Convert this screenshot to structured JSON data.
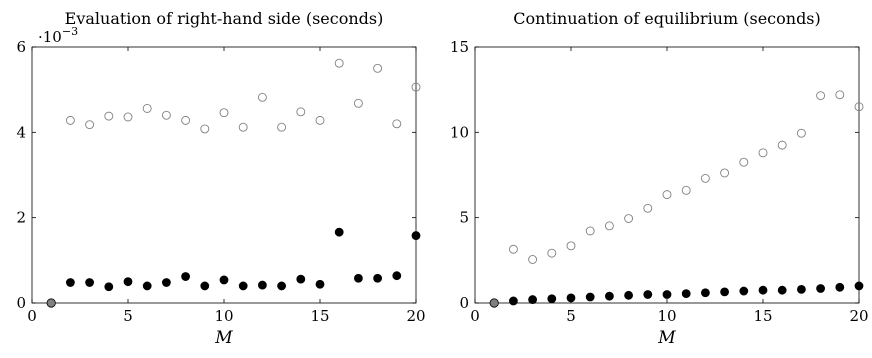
{
  "chart_data": [
    {
      "type": "scatter",
      "title": "Evaluation of right-hand side (seconds)",
      "xlabel": "M",
      "ylabel": "",
      "xlim": [
        0,
        20
      ],
      "ylim": [
        0,
        0.006
      ],
      "xticks": [
        "0",
        "5",
        "10",
        "15",
        "20"
      ],
      "yticks": [
        "0",
        "2",
        "4",
        "6"
      ],
      "y_multiplier": {
        "base": "·10",
        "exponent": "−3"
      },
      "grid": false,
      "series": [
        {
          "marker": "open-circle",
          "color": "#808080",
          "points": [
            [
              2,
              0.00428
            ],
            [
              3,
              0.00418
            ],
            [
              4,
              0.00438
            ],
            [
              5,
              0.00436
            ],
            [
              6,
              0.00456
            ],
            [
              7,
              0.0044
            ],
            [
              8,
              0.00428
            ],
            [
              9,
              0.00408
            ],
            [
              10,
              0.00446
            ],
            [
              11,
              0.00412
            ],
            [
              12,
              0.00482
            ],
            [
              13,
              0.00412
            ],
            [
              14,
              0.00448
            ],
            [
              15,
              0.00428
            ],
            [
              16,
              0.00562
            ],
            [
              17,
              0.00468
            ],
            [
              18,
              0.0055
            ],
            [
              19,
              0.0042
            ],
            [
              20,
              0.00506
            ]
          ]
        },
        {
          "marker": "filled-circle",
          "color": "#000000",
          "points": [
            [
              1,
              0.0
            ],
            [
              2,
              0.00048
            ],
            [
              3,
              0.00048
            ],
            [
              4,
              0.00038
            ],
            [
              5,
              0.0005
            ],
            [
              6,
              0.0004
            ],
            [
              7,
              0.00048
            ],
            [
              8,
              0.00062
            ],
            [
              9,
              0.0004
            ],
            [
              10,
              0.00054
            ],
            [
              11,
              0.0004
            ],
            [
              12,
              0.00042
            ],
            [
              13,
              0.0004
            ],
            [
              14,
              0.00056
            ],
            [
              15,
              0.00044
            ],
            [
              16,
              0.00166
            ],
            [
              17,
              0.00058
            ],
            [
              18,
              0.00058
            ],
            [
              19,
              0.00064
            ],
            [
              20,
              0.00158
            ]
          ]
        }
      ],
      "origin_marker": {
        "x": 1,
        "y": 0,
        "color": "#808080"
      }
    },
    {
      "type": "scatter",
      "title": "Continuation of equilibrium (seconds)",
      "xlabel": "M",
      "ylabel": "",
      "xlim": [
        0,
        20
      ],
      "ylim": [
        0,
        15
      ],
      "xticks": [
        "0",
        "5",
        "10",
        "15",
        "20"
      ],
      "yticks": [
        "0",
        "5",
        "10",
        "15"
      ],
      "grid": false,
      "series": [
        {
          "marker": "open-circle",
          "color": "#808080",
          "points": [
            [
              2,
              3.15
            ],
            [
              3,
              2.55
            ],
            [
              4,
              2.92
            ],
            [
              5,
              3.35
            ],
            [
              6,
              4.22
            ],
            [
              7,
              4.52
            ],
            [
              8,
              4.95
            ],
            [
              9,
              5.55
            ],
            [
              10,
              6.35
            ],
            [
              11,
              6.6
            ],
            [
              12,
              7.3
            ],
            [
              13,
              7.62
            ],
            [
              14,
              8.25
            ],
            [
              15,
              8.8
            ],
            [
              16,
              9.25
            ],
            [
              17,
              9.95
            ],
            [
              18,
              12.15
            ],
            [
              19,
              12.2
            ],
            [
              20,
              11.5
            ]
          ]
        },
        {
          "marker": "filled-circle",
          "color": "#000000",
          "points": [
            [
              1,
              0.0
            ],
            [
              2,
              0.12
            ],
            [
              3,
              0.2
            ],
            [
              4,
              0.25
            ],
            [
              5,
              0.3
            ],
            [
              6,
              0.35
            ],
            [
              7,
              0.4
            ],
            [
              8,
              0.45
            ],
            [
              9,
              0.5
            ],
            [
              10,
              0.5
            ],
            [
              11,
              0.55
            ],
            [
              12,
              0.6
            ],
            [
              13,
              0.65
            ],
            [
              14,
              0.7
            ],
            [
              15,
              0.75
            ],
            [
              16,
              0.75
            ],
            [
              17,
              0.8
            ],
            [
              18,
              0.85
            ],
            [
              19,
              0.92
            ],
            [
              20,
              1.0
            ]
          ]
        }
      ],
      "origin_marker": {
        "x": 1,
        "y": 0,
        "color": "#808080"
      }
    }
  ]
}
